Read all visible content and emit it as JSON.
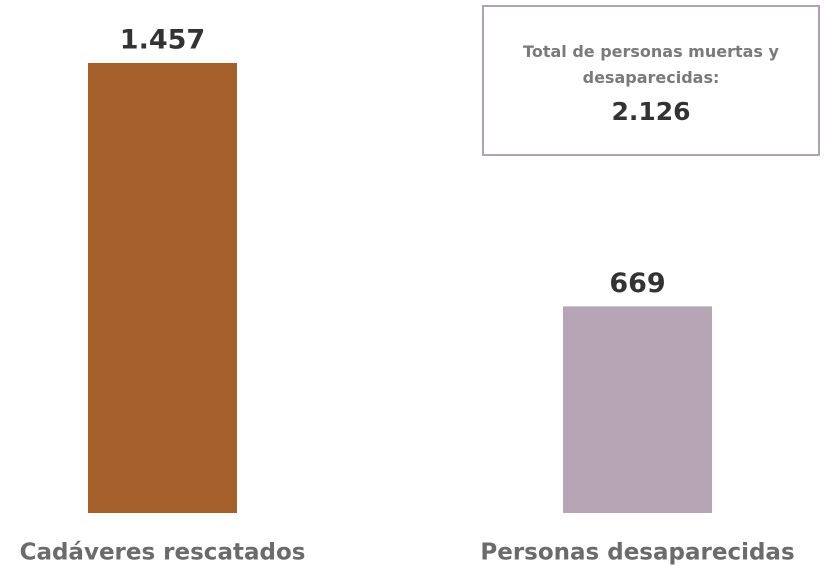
{
  "chart_data": {
    "type": "bar",
    "categories": [
      "Cadáveres rescatados",
      "Personas desaparecidas"
    ],
    "values": [
      1457,
      669
    ],
    "value_labels": [
      "1.457",
      "669"
    ],
    "colors": [
      "#a5602b",
      "#b5a5b5"
    ],
    "annotation": {
      "text": "Total de personas muertas y desaparecidas:",
      "value": "2.126"
    }
  }
}
